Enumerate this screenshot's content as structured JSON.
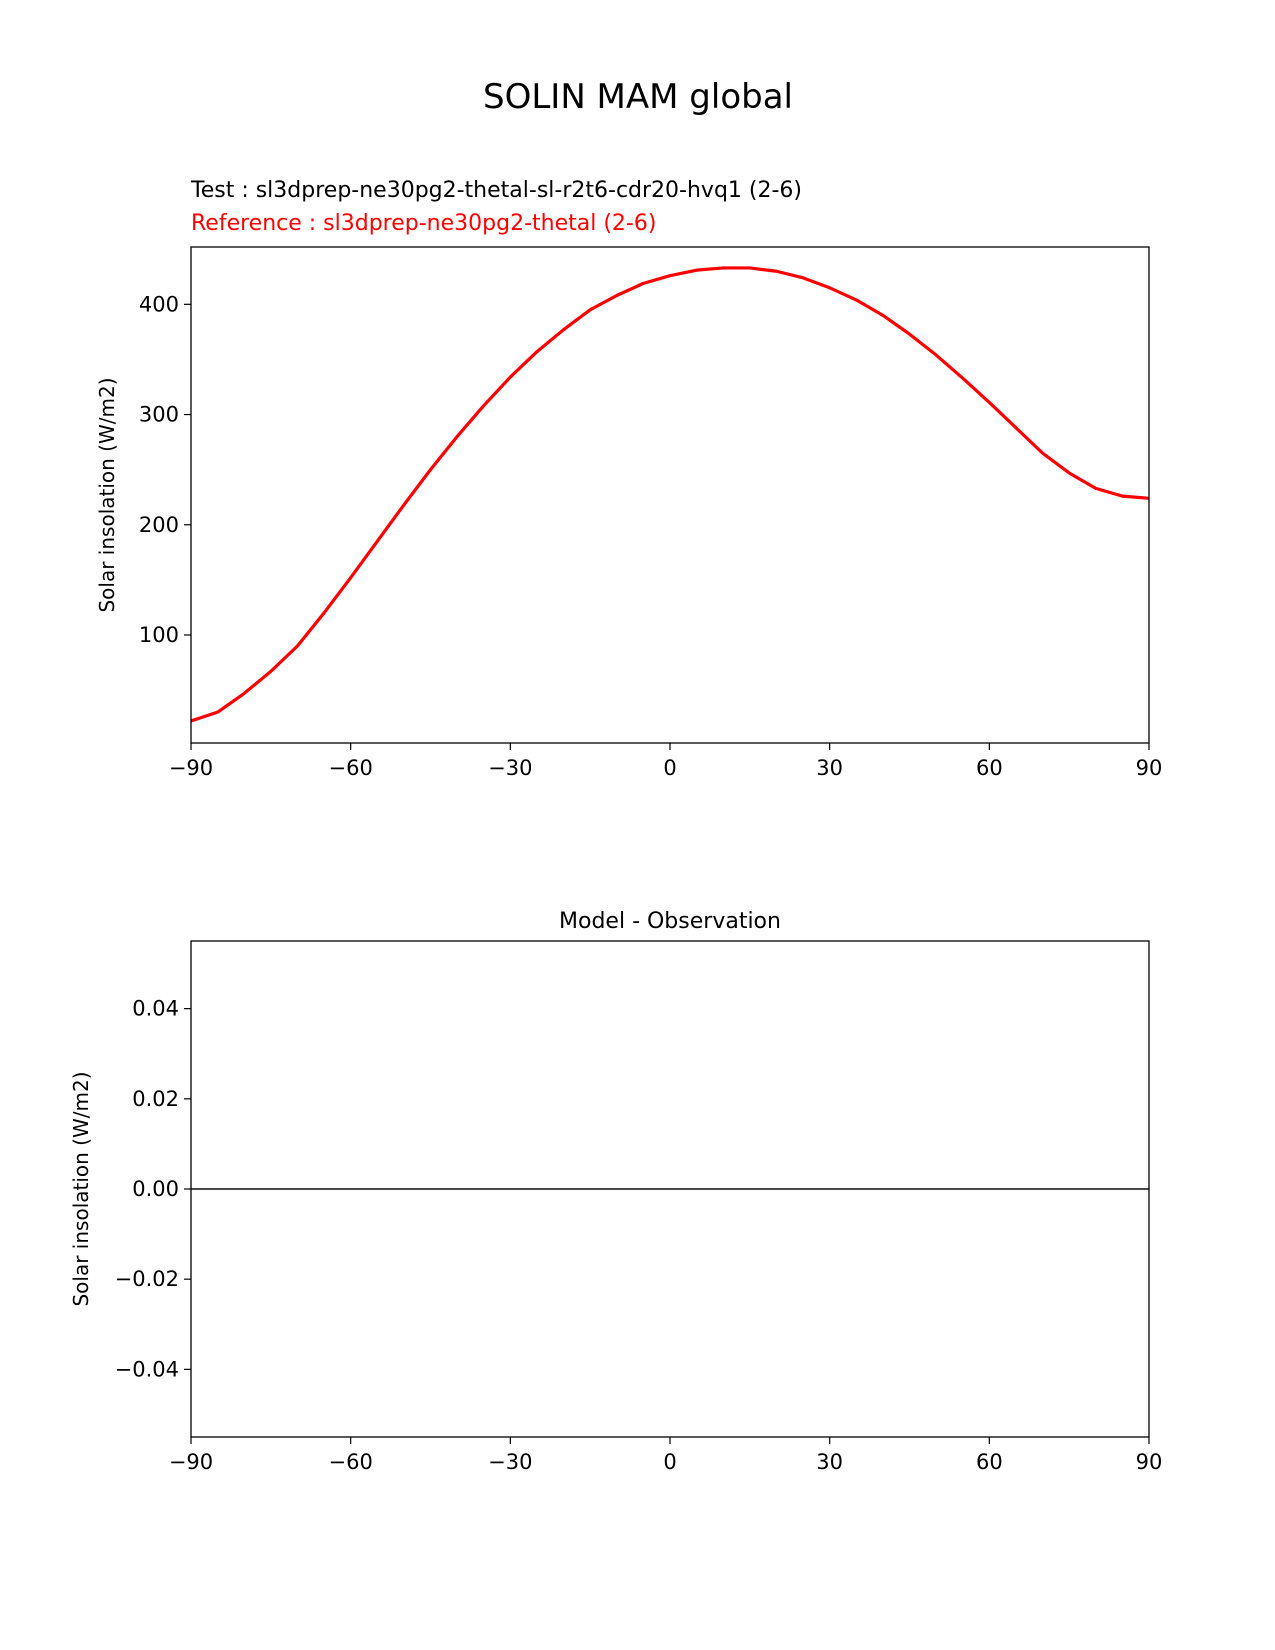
{
  "figure": {
    "title": "SOLIN MAM global",
    "test_label": "Test : sl3dprep-ne30pg2-thetal-sl-r2t6-cdr20-hvq1 (2-6)",
    "reference_label": "Reference : sl3dprep-ne30pg2-thetal (2-6)"
  },
  "colors": {
    "test": "#000000",
    "reference": "#ff0000",
    "difference": "#000000",
    "zero_line": "#888888"
  },
  "chart_data": [
    {
      "type": "line",
      "title": "",
      "xlabel": "",
      "ylabel": "Solar insolation (W/m2)",
      "xlim": [
        -90,
        90
      ],
      "ylim": [
        2,
        452
      ],
      "xticks": [
        -90,
        -60,
        -30,
        0,
        30,
        60,
        90
      ],
      "xtick_labels": [
        "−90",
        "−60",
        "−30",
        "0",
        "30",
        "60",
        "90"
      ],
      "yticks": [
        100,
        200,
        300,
        400
      ],
      "ytick_labels": [
        "100",
        "200",
        "300",
        "400"
      ],
      "grid": false,
      "series": [
        {
          "name": "Test",
          "x": [
            -90,
            -85,
            -80,
            -75,
            -70,
            -65,
            -60,
            -55,
            -50,
            -45,
            -40,
            -35,
            -30,
            -25,
            -20,
            -15,
            -10,
            -5,
            0,
            5,
            10,
            15,
            20,
            25,
            30,
            35,
            40,
            45,
            50,
            55,
            60,
            65,
            70,
            75,
            80,
            85,
            90
          ],
          "y": [
            22,
            30,
            47,
            67,
            90,
            120,
            152,
            185,
            218,
            250,
            280,
            308,
            334,
            357,
            377,
            395,
            408,
            419,
            426,
            431,
            433,
            433,
            430,
            424,
            415,
            404,
            390,
            373,
            354,
            333,
            311,
            288,
            265,
            247,
            233,
            226,
            224
          ]
        },
        {
          "name": "Reference",
          "x": [
            -90,
            -85,
            -80,
            -75,
            -70,
            -65,
            -60,
            -55,
            -50,
            -45,
            -40,
            -35,
            -30,
            -25,
            -20,
            -15,
            -10,
            -5,
            0,
            5,
            10,
            15,
            20,
            25,
            30,
            35,
            40,
            45,
            50,
            55,
            60,
            65,
            70,
            75,
            80,
            85,
            90
          ],
          "y": [
            22,
            30,
            47,
            67,
            90,
            120,
            152,
            185,
            218,
            250,
            280,
            308,
            334,
            357,
            377,
            395,
            408,
            419,
            426,
            431,
            433,
            433,
            430,
            424,
            415,
            404,
            390,
            373,
            354,
            333,
            311,
            288,
            265,
            247,
            233,
            226,
            224
          ]
        }
      ]
    },
    {
      "type": "line",
      "title": "Model - Observation",
      "xlabel": "",
      "ylabel": "Solar insolation (W/m2)",
      "xlim": [
        -90,
        90
      ],
      "ylim": [
        -0.055,
        0.055
      ],
      "xticks": [
        -90,
        -60,
        -30,
        0,
        30,
        60,
        90
      ],
      "xtick_labels": [
        "−90",
        "−60",
        "−30",
        "0",
        "30",
        "60",
        "90"
      ],
      "yticks": [
        -0.04,
        -0.02,
        0.0,
        0.02,
        0.04
      ],
      "ytick_labels": [
        "−0.04",
        "−0.02",
        "0.00",
        "0.02",
        "0.04"
      ],
      "grid": false,
      "zero_line": 0,
      "series": [
        {
          "x": [
            -90,
            -60,
            -30,
            0,
            30,
            60,
            90
          ],
          "y": [
            0,
            0,
            0,
            0,
            0,
            0,
            0
          ]
        }
      ]
    }
  ]
}
